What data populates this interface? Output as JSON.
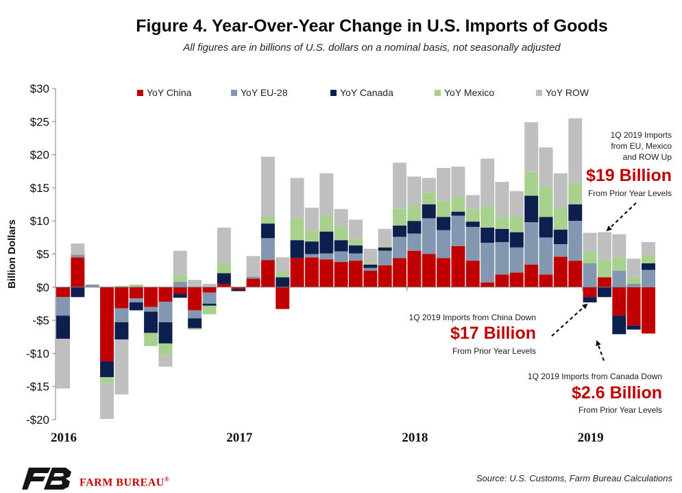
{
  "title": "Figure 4. Year-Over-Year Change in U.S. Imports of Goods",
  "subtitle": "All figures are in billions of U.S. dollars on a nominal basis, not seasonally adjusted",
  "source": "Source: U.S. Customs, Farm Bureau Calculations",
  "logo": {
    "name": "FARM BUREAU",
    "mark": "FB",
    "registered": "®"
  },
  "annotations": {
    "row_up": {
      "line1": "1Q 2019 Imports",
      "line2": "from EU, Mexico",
      "line3": "and ROW Up",
      "big": "$19 Billion",
      "sub": "From Prior Year Levels"
    },
    "china_down": {
      "line1": "1Q 2019 Imports from China Down",
      "big": "$17 Billion",
      "sub": "From Prior Year Levels"
    },
    "canada_down": {
      "line1": "1Q 2019 Imports from Canada Down",
      "big": "$2.6 Billion",
      "sub": "From Prior Year Levels"
    }
  },
  "colors": {
    "china": "#c00000",
    "eu": "#8497b0",
    "canada": "#0d1f4e",
    "mexico": "#a9d18e",
    "row": "#bfbfbf",
    "accent": "#c00000"
  },
  "chart_data": {
    "type": "bar",
    "stacked": true,
    "ylabel": "Billion Dollars",
    "ylim": [
      -20,
      30
    ],
    "yticks": [
      30,
      25,
      20,
      15,
      10,
      5,
      0,
      -5,
      -10,
      -15,
      -20
    ],
    "ytick_labels": [
      "$30",
      "$25",
      "$20",
      "$15",
      "$10",
      "$5",
      "$0",
      "-$5",
      "-$10",
      "-$15",
      "-$20"
    ],
    "x_year_labels": [
      {
        "label": "2016",
        "month_index": 0
      },
      {
        "label": "2017",
        "month_index": 12
      },
      {
        "label": "2018",
        "month_index": 24
      },
      {
        "label": "2019",
        "month_index": 36
      }
    ],
    "legend_position": "top",
    "series": [
      {
        "name": "YoY China",
        "key": "china",
        "values": [
          -1.5,
          4.5,
          0,
          -11.2,
          -3.2,
          -1.7,
          -3.0,
          -2.2,
          -1.0,
          -3.5,
          -0.8,
          0.5,
          -0.3,
          1.3,
          4.1,
          -3.3,
          4.4,
          4.5,
          4.2,
          3.8,
          4.0,
          2.5,
          3.3,
          4.4,
          5.5,
          5.0,
          4.4,
          6.2,
          4.0,
          0.7,
          1.9,
          2.2,
          3.4,
          1.9,
          4.6,
          4.0,
          -1.5,
          1.5,
          -4.3,
          -5.8,
          -7.0
        ]
      },
      {
        "name": "YoY EU-28",
        "key": "eu",
        "values": [
          -2.8,
          0.4,
          0.4,
          0,
          -2.1,
          -0.6,
          -0.7,
          -3.1,
          0.8,
          -1.2,
          -1.7,
          0,
          0,
          0.3,
          3.3,
          0,
          0,
          0.5,
          0.9,
          1.6,
          1.1,
          0.4,
          2.2,
          3.2,
          2.6,
          5.4,
          4.2,
          4.6,
          5.1,
          6.0,
          4.9,
          3.8,
          6.4,
          5.6,
          1.9,
          6.0,
          3.6,
          0,
          2.5,
          0.5,
          2.6
        ]
      },
      {
        "name": "YoY Canada",
        "key": "canada",
        "values": [
          -3.5,
          -1.5,
          0,
          -2.4,
          -2.6,
          -1.2,
          -3.2,
          -3.2,
          -0.6,
          -1.5,
          -0.3,
          1.6,
          -0.3,
          0,
          2.2,
          1.5,
          2.7,
          1.9,
          3.3,
          1.7,
          1.2,
          0.5,
          0.5,
          1.7,
          1.9,
          2.1,
          2.0,
          0.6,
          0.8,
          2.3,
          2.0,
          2.3,
          4.0,
          3.1,
          2.2,
          2.5,
          -0.8,
          -1.5,
          -2.8,
          -0.6,
          1.0
        ]
      },
      {
        "name": "YoY Mexico",
        "key": "mexico",
        "values": [
          0,
          0,
          0,
          -0.9,
          0.2,
          0.4,
          -2.0,
          -1.8,
          1.0,
          -0.2,
          -1.3,
          1.5,
          0,
          0,
          1.1,
          0.8,
          3.3,
          1.6,
          2.4,
          2.1,
          1.0,
          0.2,
          0.3,
          2.5,
          2.3,
          1.8,
          2.4,
          2.3,
          1.9,
          3.2,
          1.8,
          2.4,
          3.6,
          4.6,
          3.4,
          3.2,
          1.8,
          2.6,
          2.0,
          1.0,
          1.2
        ]
      },
      {
        "name": "YoY ROW",
        "key": "row",
        "values": [
          -7.5,
          1.7,
          0,
          -5.4,
          -8.3,
          0,
          0,
          -1.7,
          3.7,
          1.1,
          0.5,
          5.4,
          0,
          3.1,
          9.0,
          2.2,
          6.1,
          3.5,
          6.4,
          2.6,
          2.9,
          2.2,
          2.5,
          7.0,
          4.4,
          2.2,
          5.0,
          4.5,
          2.1,
          7.2,
          5.3,
          3.8,
          7.5,
          5.9,
          5.1,
          9.8,
          2.8,
          4.2,
          3.5,
          2.8,
          2.0
        ]
      }
    ]
  }
}
